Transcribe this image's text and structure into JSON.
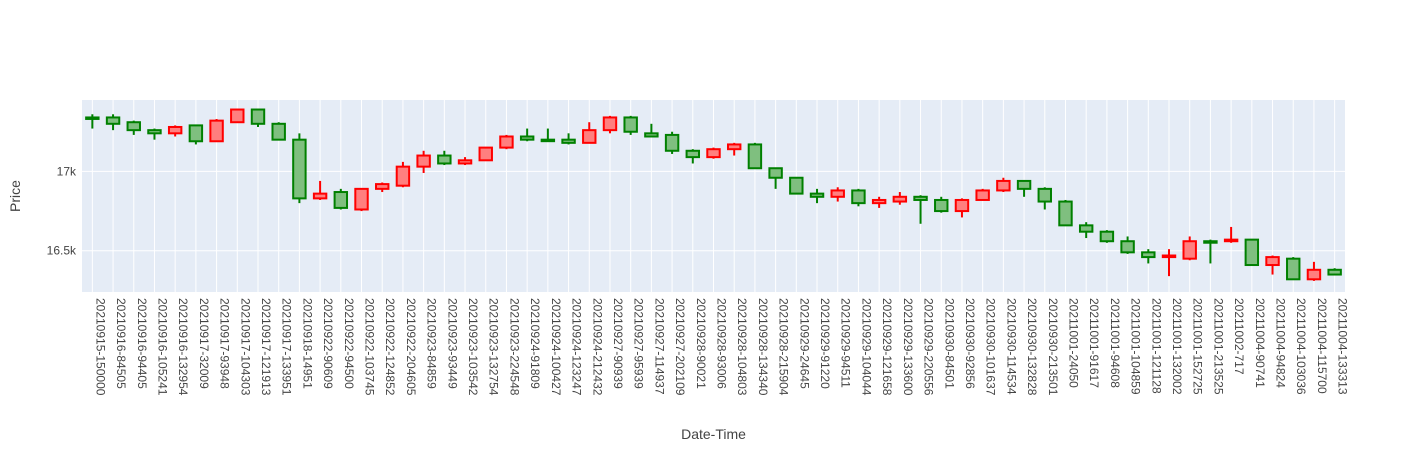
{
  "chart_data": {
    "type": "candlestick",
    "title": "",
    "xlabel": "Date-Time",
    "ylabel": "Price",
    "ylim": [
      16240,
      17450
    ],
    "y_ticks": [
      16500,
      17000
    ],
    "y_tick_labels": [
      "16.5k",
      "17k"
    ],
    "grid": true,
    "colors": {
      "increasing": "#008000",
      "decreasing": "#ff0000",
      "increasing_fill": "#7fbf7f",
      "decreasing_fill": "#ff7f7f",
      "plot_bg": "#e5ecf6",
      "grid": "#ffffff"
    },
    "candles": [
      {
        "x": "20210915-150000",
        "open": 17340,
        "high": 17360,
        "low": 17270,
        "close": 17340
      },
      {
        "x": "20210916-84505",
        "open": 17300,
        "high": 17360,
        "low": 17260,
        "close": 17340
      },
      {
        "x": "20210916-94405",
        "open": 17260,
        "high": 17320,
        "low": 17230,
        "close": 17310
      },
      {
        "x": "20210916-105241",
        "open": 17240,
        "high": 17270,
        "low": 17200,
        "close": 17260
      },
      {
        "x": "20210916-132954",
        "open": 17280,
        "high": 17290,
        "low": 17220,
        "close": 17240
      },
      {
        "x": "20210917-32009",
        "open": 17190,
        "high": 17290,
        "low": 17170,
        "close": 17290
      },
      {
        "x": "20210917-93948",
        "open": 17320,
        "high": 17330,
        "low": 17190,
        "close": 17190
      },
      {
        "x": "20210917-104303",
        "open": 17390,
        "high": 17395,
        "low": 17310,
        "close": 17310
      },
      {
        "x": "20210917-121913",
        "open": 17300,
        "high": 17390,
        "low": 17280,
        "close": 17390
      },
      {
        "x": "20210917-133951",
        "open": 17200,
        "high": 17310,
        "low": 17200,
        "close": 17300
      },
      {
        "x": "20210918-14951",
        "open": 16830,
        "high": 17240,
        "low": 16800,
        "close": 17200
      },
      {
        "x": "20210922-90609",
        "open": 16860,
        "high": 16940,
        "low": 16820,
        "close": 16830
      },
      {
        "x": "20210922-94500",
        "open": 16770,
        "high": 16890,
        "low": 16760,
        "close": 16870
      },
      {
        "x": "20210922-103745",
        "open": 16890,
        "high": 16890,
        "low": 16750,
        "close": 16760
      },
      {
        "x": "20210922-124852",
        "open": 16920,
        "high": 16930,
        "low": 16870,
        "close": 16890
      },
      {
        "x": "20210922-204605",
        "open": 17030,
        "high": 17060,
        "low": 16900,
        "close": 16910
      },
      {
        "x": "20210923-84859",
        "open": 17100,
        "high": 17130,
        "low": 16990,
        "close": 17030
      },
      {
        "x": "20210923-93449",
        "open": 17050,
        "high": 17130,
        "low": 17040,
        "close": 17100
      },
      {
        "x": "20210923-103542",
        "open": 17070,
        "high": 17090,
        "low": 17040,
        "close": 17050
      },
      {
        "x": "20210923-132754",
        "open": 17150,
        "high": 17150,
        "low": 17070,
        "close": 17070
      },
      {
        "x": "20210923-224548",
        "open": 17220,
        "high": 17230,
        "low": 17140,
        "close": 17150
      },
      {
        "x": "20210924-91809",
        "open": 17200,
        "high": 17270,
        "low": 17190,
        "close": 17220
      },
      {
        "x": "20210924-100427",
        "open": 17200,
        "high": 17270,
        "low": 17200,
        "close": 17200
      },
      {
        "x": "20210924-123247",
        "open": 17180,
        "high": 17240,
        "low": 17170,
        "close": 17200
      },
      {
        "x": "20210924-212432",
        "open": 17260,
        "high": 17310,
        "low": 17180,
        "close": 17180
      },
      {
        "x": "20210927-90939",
        "open": 17340,
        "high": 17350,
        "low": 17240,
        "close": 17260
      },
      {
        "x": "20210927-95939",
        "open": 17250,
        "high": 17350,
        "low": 17230,
        "close": 17340
      },
      {
        "x": "20210927-114937",
        "open": 17220,
        "high": 17300,
        "low": 17220,
        "close": 17240
      },
      {
        "x": "20210927-202109",
        "open": 17130,
        "high": 17250,
        "low": 17110,
        "close": 17230
      },
      {
        "x": "20210928-90021",
        "open": 17090,
        "high": 17140,
        "low": 17050,
        "close": 17130
      },
      {
        "x": "20210928-93006",
        "open": 17140,
        "high": 17150,
        "low": 17080,
        "close": 17090
      },
      {
        "x": "20210928-104803",
        "open": 17170,
        "high": 17180,
        "low": 17100,
        "close": 17140
      },
      {
        "x": "20210928-134340",
        "open": 17020,
        "high": 17180,
        "low": 17020,
        "close": 17170
      },
      {
        "x": "20210928-215904",
        "open": 16960,
        "high": 17020,
        "low": 16890,
        "close": 17020
      },
      {
        "x": "20210929-24645",
        "open": 16860,
        "high": 16960,
        "low": 16860,
        "close": 16960
      },
      {
        "x": "20210929-91220",
        "open": 16840,
        "high": 16890,
        "low": 16800,
        "close": 16860
      },
      {
        "x": "20210929-94511",
        "open": 16880,
        "high": 16900,
        "low": 16810,
        "close": 16840
      },
      {
        "x": "20210929-104044",
        "open": 16800,
        "high": 16890,
        "low": 16780,
        "close": 16880
      },
      {
        "x": "20210929-121658",
        "open": 16820,
        "high": 16840,
        "low": 16770,
        "close": 16800
      },
      {
        "x": "20210929-133600",
        "open": 16840,
        "high": 16870,
        "low": 16790,
        "close": 16810
      },
      {
        "x": "20210929-220556",
        "open": 16820,
        "high": 16850,
        "low": 16670,
        "close": 16840
      },
      {
        "x": "20210930-84501",
        "open": 16750,
        "high": 16840,
        "low": 16740,
        "close": 16820
      },
      {
        "x": "20210930-92856",
        "open": 16820,
        "high": 16830,
        "low": 16710,
        "close": 16750
      },
      {
        "x": "20210930-101637",
        "open": 16880,
        "high": 16890,
        "low": 16820,
        "close": 16820
      },
      {
        "x": "20210930-114534",
        "open": 16940,
        "high": 16960,
        "low": 16870,
        "close": 16880
      },
      {
        "x": "20210930-132828",
        "open": 16890,
        "high": 16940,
        "low": 16840,
        "close": 16940
      },
      {
        "x": "20210930-213501",
        "open": 16810,
        "high": 16900,
        "low": 16760,
        "close": 16890
      },
      {
        "x": "20211001-24050",
        "open": 16660,
        "high": 16820,
        "low": 16660,
        "close": 16810
      },
      {
        "x": "20211001-91617",
        "open": 16620,
        "high": 16680,
        "low": 16580,
        "close": 16660
      },
      {
        "x": "20211001-94608",
        "open": 16560,
        "high": 16630,
        "low": 16550,
        "close": 16620
      },
      {
        "x": "20211001-104859",
        "open": 16490,
        "high": 16590,
        "low": 16480,
        "close": 16560
      },
      {
        "x": "20211001-121128",
        "open": 16460,
        "high": 16510,
        "low": 16420,
        "close": 16490
      },
      {
        "x": "20211001-132002",
        "open": 16470,
        "high": 16510,
        "low": 16340,
        "close": 16460
      },
      {
        "x": "20211001-152725",
        "open": 16560,
        "high": 16590,
        "low": 16440,
        "close": 16450
      },
      {
        "x": "20211001-213525",
        "open": 16560,
        "high": 16570,
        "low": 16420,
        "close": 16560
      },
      {
        "x": "20211002-717",
        "open": 16570,
        "high": 16650,
        "low": 16550,
        "close": 16560
      },
      {
        "x": "20211004-90741",
        "open": 16410,
        "high": 16570,
        "low": 16410,
        "close": 16570
      },
      {
        "x": "20211004-94824",
        "open": 16460,
        "high": 16470,
        "low": 16350,
        "close": 16410
      },
      {
        "x": "20211004-103036",
        "open": 16320,
        "high": 16460,
        "low": 16320,
        "close": 16450
      },
      {
        "x": "20211004-115700",
        "open": 16380,
        "high": 16430,
        "low": 16310,
        "close": 16320
      },
      {
        "x": "20211004-133313",
        "open": 16350,
        "high": 16390,
        "low": 16350,
        "close": 16380
      }
    ]
  }
}
